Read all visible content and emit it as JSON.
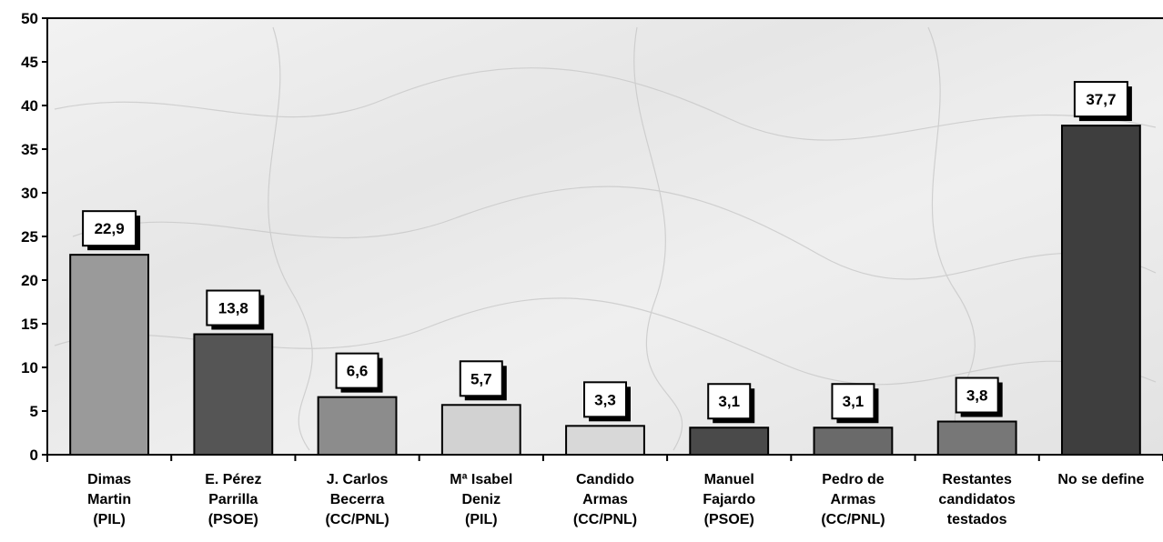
{
  "chart_data": {
    "type": "bar",
    "title": "",
    "xlabel": "",
    "ylabel": "",
    "ylim": [
      0,
      50
    ],
    "yticks": [
      0,
      5,
      10,
      15,
      20,
      25,
      30,
      35,
      40,
      45,
      50
    ],
    "grid": false,
    "categories": [
      [
        "Dimas",
        "Martin",
        "(PIL)"
      ],
      [
        "E. Pérez",
        "Parrilla",
        "(PSOE)"
      ],
      [
        "J. Carlos",
        "Becerra",
        "(CC/PNL)"
      ],
      [
        "Mª Isabel",
        "Deniz",
        "(PIL)"
      ],
      [
        "Candido",
        "Armas",
        "(CC/PNL)"
      ],
      [
        "Manuel",
        "Fajardo",
        "(PSOE)"
      ],
      [
        "Pedro de",
        "Armas",
        "(CC/PNL)"
      ],
      [
        "Restantes",
        "candidatos",
        "testados"
      ],
      [
        "No se define"
      ]
    ],
    "values": [
      22.9,
      13.8,
      6.6,
      5.7,
      3.3,
      3.1,
      3.1,
      3.8,
      37.7
    ],
    "value_labels": [
      "22,9",
      "13,8",
      "6,6",
      "5,7",
      "3,3",
      "3,1",
      "3,1",
      "3,8",
      "37,7"
    ],
    "colors": [
      "#9a9a9a",
      "#555555",
      "#8c8c8c",
      "#d2d2d2",
      "#d8d8d8",
      "#4a4a4a",
      "#6a6a6a",
      "#777777",
      "#3e3e3e"
    ]
  }
}
